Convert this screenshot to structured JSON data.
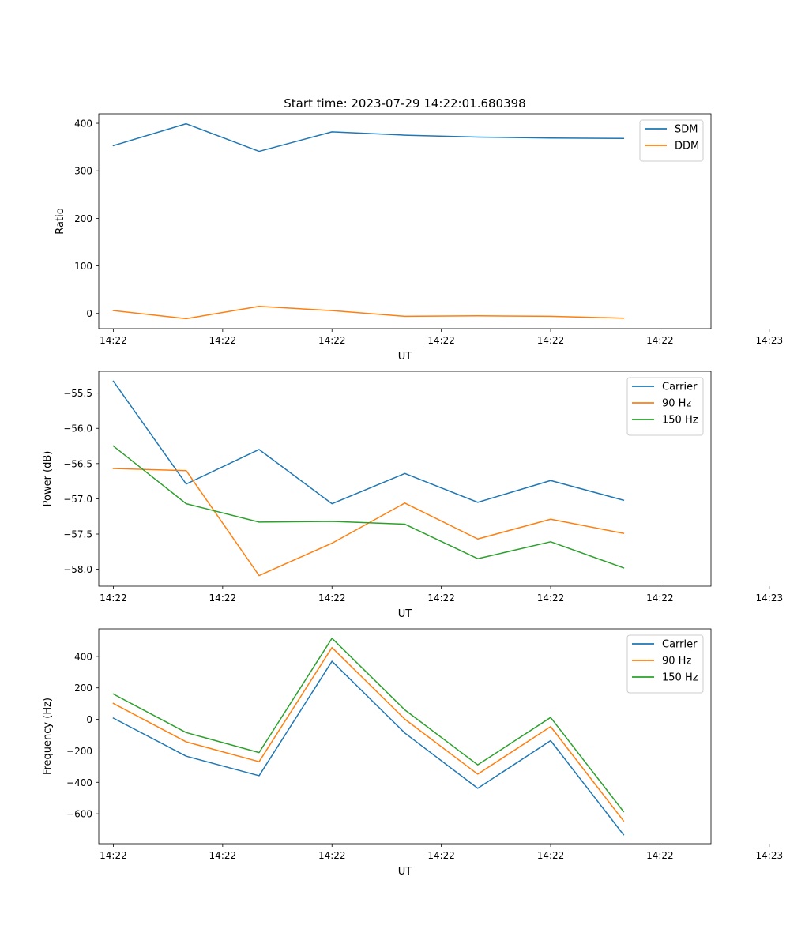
{
  "figure": {
    "title": "Start time: 2023-07-29 14:22:01.680398"
  },
  "chart_data": [
    {
      "type": "line",
      "xlabel": "UT",
      "ylabel": "Ratio",
      "x": [
        1,
        2,
        3,
        4,
        5,
        6,
        7,
        8
      ],
      "xlim": [
        0.8,
        9.2
      ],
      "xticks": [
        1,
        2.5,
        4,
        5.5,
        7,
        8.5,
        10
      ],
      "xtick_labels": [
        "14:22",
        "14:22",
        "14:22",
        "14:22",
        "14:22",
        "14:22",
        "14:23"
      ],
      "ylim": [
        -32,
        420
      ],
      "yticks": [
        0,
        100,
        200,
        300,
        400
      ],
      "ytick_labels": [
        "0",
        "100",
        "200",
        "300",
        "400"
      ],
      "legend_position": "top-right",
      "series": [
        {
          "name": "SDM",
          "color": "#1f77b4",
          "values": [
            353,
            399,
            341,
            382,
            375,
            371,
            369,
            368
          ]
        },
        {
          "name": "DDM",
          "color": "#ff7f0e",
          "values": [
            6,
            -11,
            15,
            6,
            -6,
            -5,
            -6,
            -10
          ]
        }
      ]
    },
    {
      "type": "line",
      "xlabel": "UT",
      "ylabel": "Power (dB)",
      "x": [
        1,
        2,
        3,
        4,
        5,
        6,
        7,
        8
      ],
      "xlim": [
        0.8,
        9.2
      ],
      "xticks": [
        1,
        2.5,
        4,
        5.5,
        7,
        8.5,
        10
      ],
      "xtick_labels": [
        "14:22",
        "14:22",
        "14:22",
        "14:22",
        "14:22",
        "14:22",
        "14:23"
      ],
      "ylim": [
        -58.24,
        -55.19
      ],
      "yticks": [
        -55.5,
        -56.0,
        -56.5,
        -57.0,
        -57.5,
        -58.0
      ],
      "ytick_labels": [
        "−55.5",
        "−56.0",
        "−56.5",
        "−57.0",
        "−57.5",
        "−58.0"
      ],
      "legend_position": "top-right",
      "series": [
        {
          "name": "Carrier",
          "color": "#1f77b4",
          "values": [
            -55.33,
            -56.79,
            -56.3,
            -57.07,
            -56.64,
            -57.05,
            -56.74,
            -57.02
          ]
        },
        {
          "name": "90 Hz",
          "color": "#ff7f0e",
          "values": [
            -56.57,
            -56.6,
            -58.09,
            -57.63,
            -57.06,
            -57.57,
            -57.29,
            -57.49
          ]
        },
        {
          "name": "150 Hz",
          "color": "#2ca02c",
          "values": [
            -56.25,
            -57.07,
            -57.33,
            -57.32,
            -57.36,
            -57.85,
            -57.61,
            -57.98
          ]
        }
      ]
    },
    {
      "type": "line",
      "xlabel": "UT",
      "ylabel": "Frequency (Hz)",
      "x": [
        1,
        2,
        3,
        4,
        5,
        6,
        7,
        8
      ],
      "xlim": [
        0.8,
        9.2
      ],
      "xticks": [
        1,
        2.5,
        4,
        5.5,
        7,
        8.5,
        10
      ],
      "xtick_labels": [
        "14:22",
        "14:22",
        "14:22",
        "14:22",
        "14:22",
        "14:22",
        "14:23"
      ],
      "ylim": [
        -790,
        575
      ],
      "yticks": [
        400,
        200,
        0,
        -200,
        -400,
        -600
      ],
      "ytick_labels": [
        "400",
        "200",
        "0",
        "−200",
        "−400",
        "−600"
      ],
      "legend_position": "top-right",
      "series": [
        {
          "name": "Carrier",
          "color": "#1f77b4",
          "values": [
            8,
            -234,
            -358,
            369,
            -87,
            -438,
            -135,
            -733
          ]
        },
        {
          "name": "90 Hz",
          "color": "#ff7f0e",
          "values": [
            101,
            -143,
            -269,
            456,
            1,
            -348,
            -46,
            -645
          ]
        },
        {
          "name": "150 Hz",
          "color": "#2ca02c",
          "values": [
            161,
            -84,
            -211,
            515,
            60,
            -289,
            12,
            -586
          ]
        }
      ]
    }
  ]
}
